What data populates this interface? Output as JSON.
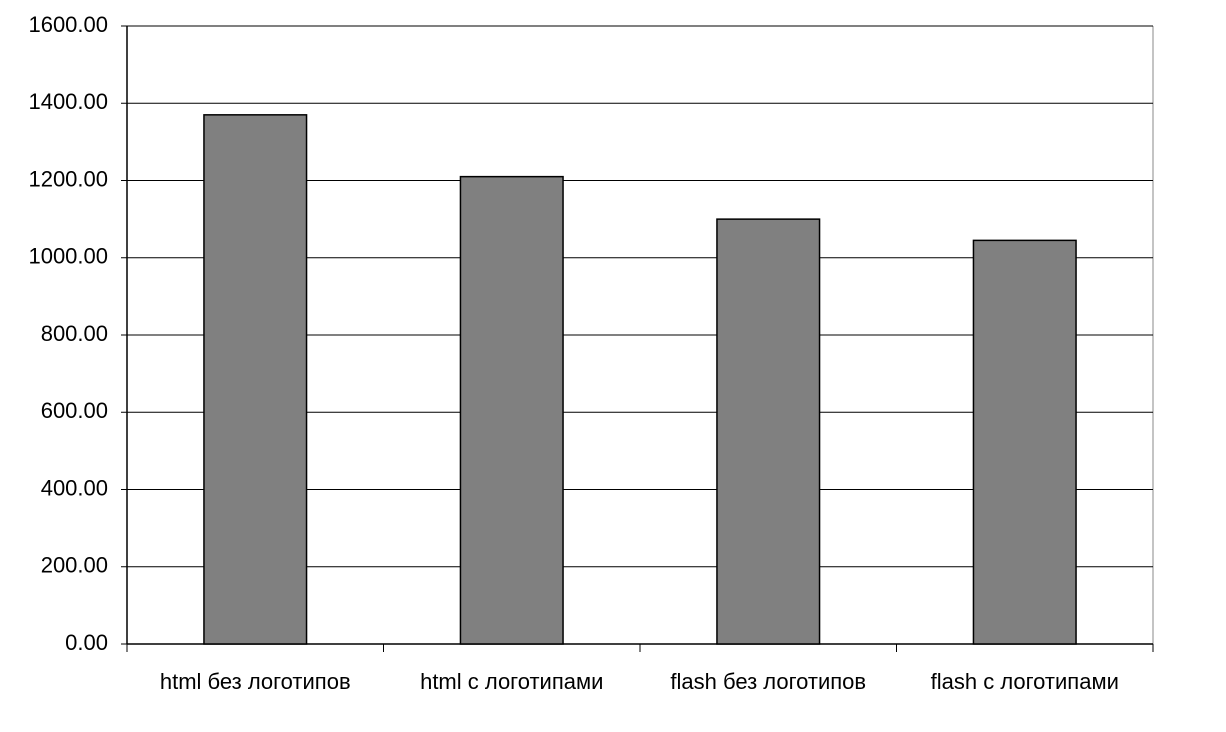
{
  "chart_data": {
    "type": "bar",
    "categories": [
      "html без логотипов",
      "html с логотипами",
      "flash без логотипов",
      "flash с логотипами"
    ],
    "values": [
      1370,
      1210,
      1100,
      1045
    ],
    "color": "#808080",
    "ylim": [
      0,
      1600
    ],
    "yticks": [
      {
        "value": 0,
        "label": "0.00"
      },
      {
        "value": 200,
        "label": "200.00"
      },
      {
        "value": 400,
        "label": "400.00"
      },
      {
        "value": 600,
        "label": "600.00"
      },
      {
        "value": 800,
        "label": "800.00"
      },
      {
        "value": 1000,
        "label": "1000.00"
      },
      {
        "value": 1200,
        "label": "1200.00"
      },
      {
        "value": 1400,
        "label": "1400.00"
      },
      {
        "value": 1600,
        "label": "1600.00"
      }
    ],
    "grid": true
  }
}
